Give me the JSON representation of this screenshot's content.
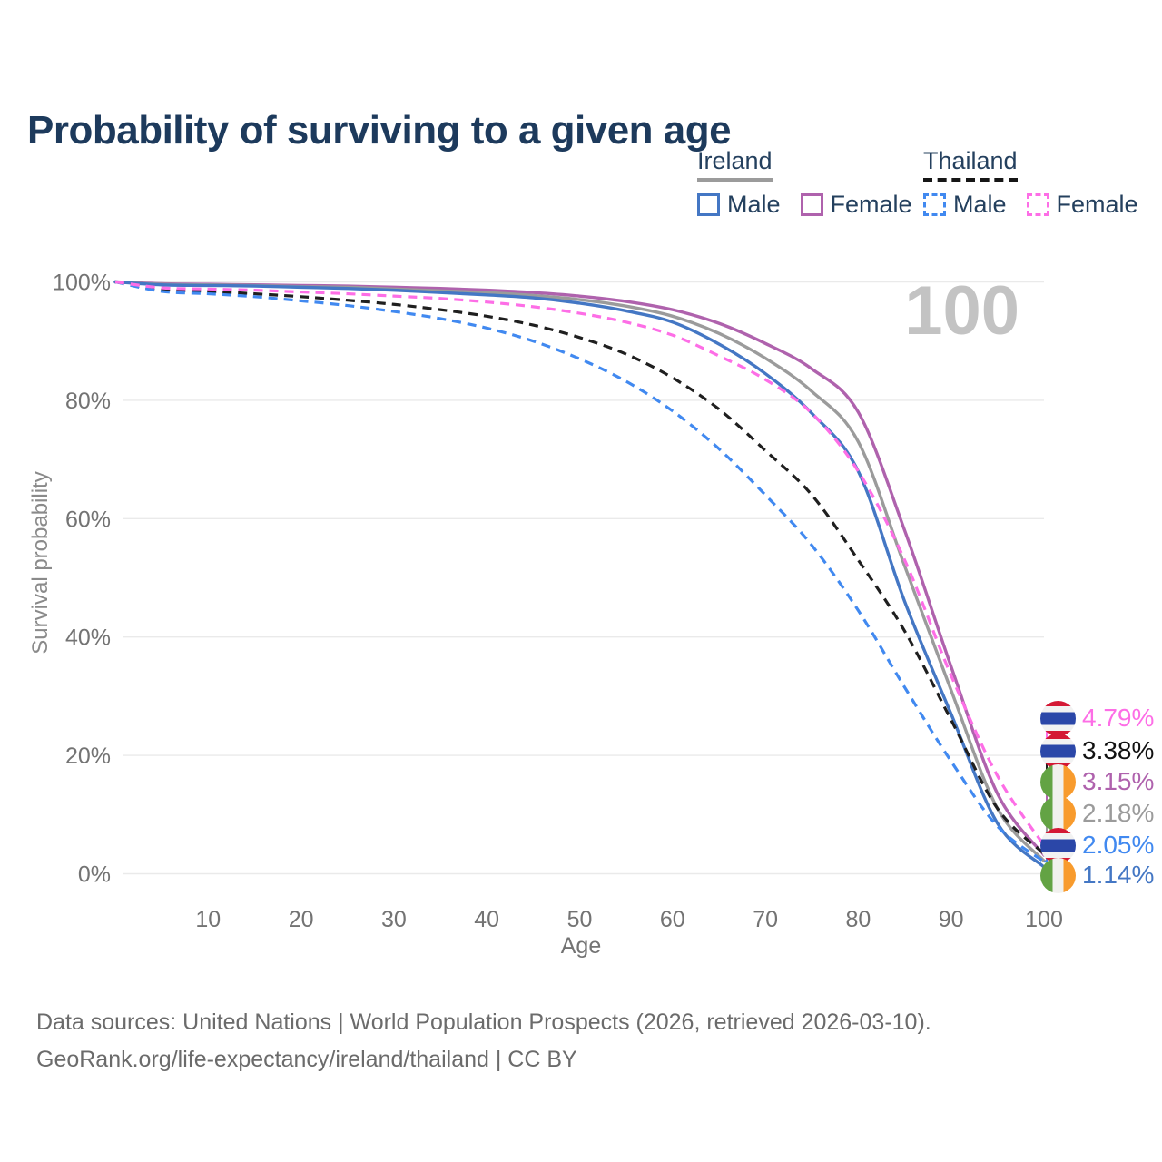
{
  "header": {
    "title": "Probability of surviving to a given age"
  },
  "watermark": "100",
  "legend": {
    "groups": [
      {
        "country": "Ireland",
        "line_style": "solid",
        "line_color": "#9b9b9b",
        "items": [
          {
            "label": "Male",
            "color": "#4477c4"
          },
          {
            "label": "Female",
            "color": "#af62ad"
          }
        ]
      },
      {
        "country": "Thailand",
        "line_style": "dashed",
        "line_color": "#161616",
        "items": [
          {
            "label": "Male",
            "color": "#4189f0"
          },
          {
            "label": "Female",
            "color": "#fd6ee6"
          }
        ]
      }
    ]
  },
  "chart_data": {
    "type": "line",
    "title": "Probability of surviving to a given age",
    "xlabel": "Age",
    "ylabel": "Survival probability",
    "xlim": [
      0,
      100
    ],
    "ylim": [
      0,
      100
    ],
    "x_ticks": [
      10,
      20,
      30,
      40,
      50,
      60,
      70,
      80,
      90,
      100
    ],
    "y_ticks": [
      0,
      20,
      40,
      60,
      80,
      100
    ],
    "y_tick_format": "percent",
    "grid": "horizontal",
    "legend_position": "top-right",
    "frame_label": "100",
    "x": [
      0,
      5,
      10,
      15,
      20,
      25,
      30,
      35,
      40,
      45,
      50,
      55,
      60,
      65,
      70,
      75,
      80,
      85,
      90,
      95,
      100
    ],
    "series": [
      {
        "name": "Ireland Female",
        "country": "Ireland",
        "sex": "Female",
        "style": "solid",
        "color": "#af62ad",
        "values": [
          100,
          99.7,
          99.6,
          99.5,
          99.4,
          99.3,
          99.1,
          98.9,
          98.6,
          98.2,
          97.6,
          96.7,
          95.3,
          93.0,
          89.6,
          85.3,
          78.0,
          58.0,
          35.0,
          13.5,
          3.15
        ],
        "value_at_100": "3.15%"
      },
      {
        "name": "Ireland Both sexes",
        "country": "Ireland",
        "sex": "Both",
        "style": "solid",
        "color": "#9b9b9b",
        "values": [
          100,
          99.6,
          99.5,
          99.4,
          99.2,
          99.1,
          98.8,
          98.5,
          98.2,
          97.7,
          97.0,
          95.9,
          94.2,
          91.3,
          87.1,
          81.5,
          73.0,
          52.0,
          31.0,
          11.0,
          2.18
        ],
        "value_at_100": "2.18%"
      },
      {
        "name": "Ireland Male",
        "country": "Ireland",
        "sex": "Male",
        "style": "solid",
        "color": "#4477c4",
        "values": [
          100,
          99.5,
          99.4,
          99.3,
          99.1,
          98.9,
          98.6,
          98.2,
          97.8,
          97.3,
          96.4,
          95.1,
          93.2,
          89.5,
          84.5,
          77.8,
          68.0,
          46.0,
          27.0,
          8.5,
          1.14
        ],
        "value_at_100": "1.14%"
      },
      {
        "name": "Thailand Both sexes",
        "country": "Thailand",
        "sex": "Both",
        "style": "dashed",
        "color": "#1f1f1f",
        "values": [
          100,
          98.7,
          98.4,
          98.0,
          97.5,
          96.9,
          96.2,
          95.3,
          94.2,
          92.7,
          90.6,
          87.8,
          83.8,
          78.5,
          71.5,
          64.0,
          53.0,
          41.0,
          26.0,
          11.0,
          3.38
        ],
        "value_at_100": "3.38%"
      },
      {
        "name": "Thailand Male",
        "country": "Thailand",
        "sex": "Male",
        "style": "dashed",
        "color": "#4189f0",
        "values": [
          100,
          98.4,
          98.0,
          97.5,
          96.8,
          96.0,
          95.0,
          93.8,
          92.2,
          90.0,
          87.0,
          83.2,
          78.2,
          71.8,
          64.0,
          55.5,
          44.5,
          31.5,
          19.0,
          8.0,
          2.05
        ],
        "value_at_100": "2.05%"
      },
      {
        "name": "Thailand Female",
        "country": "Thailand",
        "sex": "Female",
        "style": "dashed",
        "color": "#fd6ee6",
        "values": [
          100,
          99.0,
          98.8,
          98.6,
          98.3,
          98.0,
          97.6,
          97.2,
          96.6,
          95.8,
          94.7,
          93.2,
          91.0,
          87.5,
          83.5,
          77.8,
          68.0,
          53.0,
          33.5,
          16.5,
          4.79
        ],
        "value_at_100": "4.79%"
      }
    ]
  },
  "end_labels": [
    {
      "series": "Thailand Female",
      "value": "4.79%",
      "color": "#fd6ee6",
      "flag": "thailand"
    },
    {
      "series": "Thailand Both sexes",
      "value": "3.38%",
      "color": "#111111",
      "flag": "thailand"
    },
    {
      "series": "Ireland Female",
      "value": "3.15%",
      "color": "#af62ad",
      "flag": "ireland"
    },
    {
      "series": "Ireland Both sexes",
      "value": "2.18%",
      "color": "#9b9b9b",
      "flag": "ireland"
    },
    {
      "series": "Thailand Male",
      "value": "2.05%",
      "color": "#4189f0",
      "flag": "thailand"
    },
    {
      "series": "Ireland Male",
      "value": "1.14%",
      "color": "#4477c4",
      "flag": "ireland"
    }
  ],
  "footer": {
    "line1": "Data sources: United Nations | World Population Prospects (2026, retrieved 2026-03-10).",
    "line2": "GeoRank.org/life-expectancy/ireland/thailand | CC BY"
  },
  "colors": {
    "title_text": "#1d3a5c",
    "axis_text": "#737373",
    "grid_line": "#eaeaea",
    "watermark": "#c3c3c3",
    "footer_text": "#6b6b6b"
  }
}
